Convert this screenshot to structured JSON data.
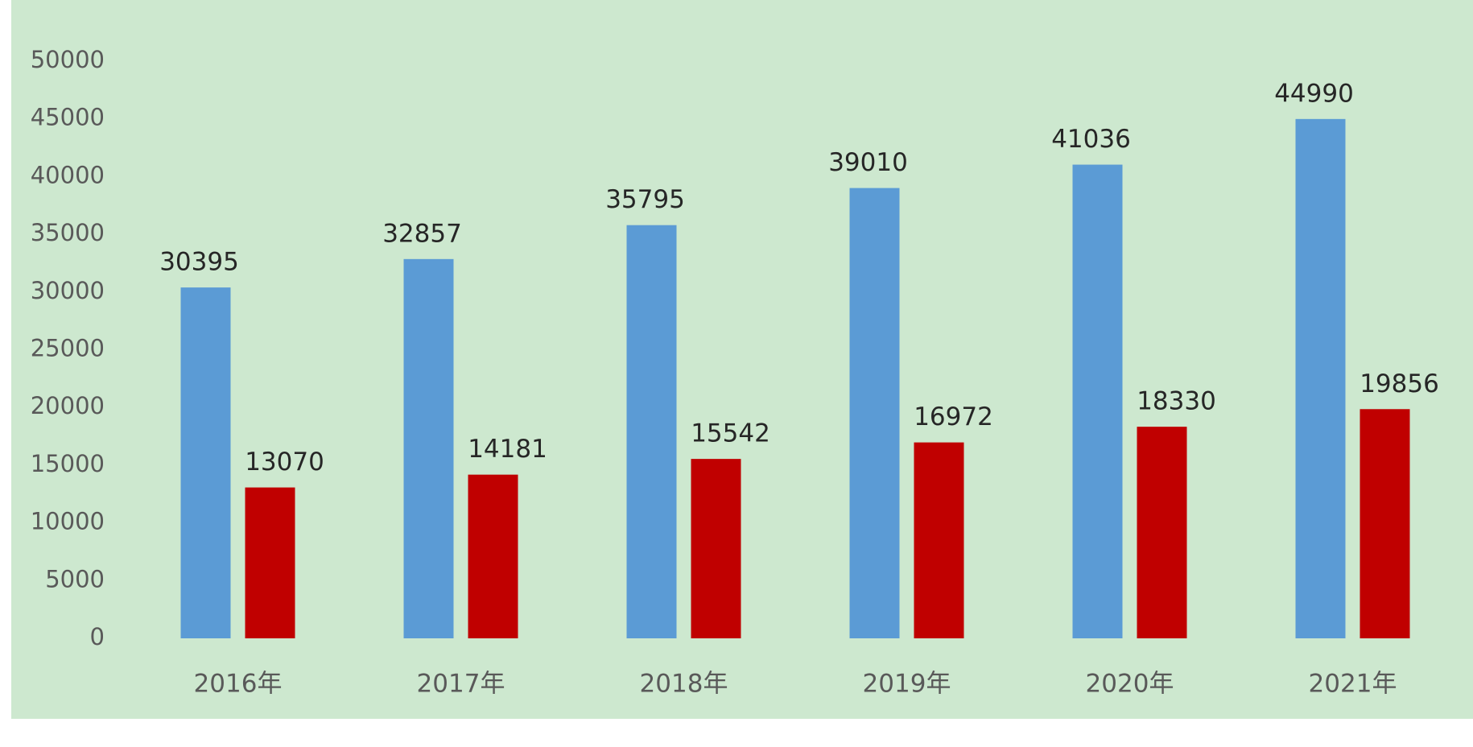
{
  "chart_data": {
    "type": "bar",
    "categories": [
      "2016年",
      "2017年",
      "2018年",
      "2019年",
      "2020年",
      "2021年"
    ],
    "series": [
      {
        "color": "#5b9bd5",
        "values": [
          30395,
          32857,
          35795,
          39010,
          41036,
          44990
        ]
      },
      {
        "color": "#c00000",
        "values": [
          13070,
          14181,
          15542,
          16972,
          18330,
          19856
        ]
      }
    ],
    "ylim": [
      0,
      50000
    ],
    "yticks": [
      0,
      5000,
      10000,
      15000,
      20000,
      25000,
      30000,
      35000,
      40000,
      45000,
      50000
    ],
    "grid": false
  }
}
